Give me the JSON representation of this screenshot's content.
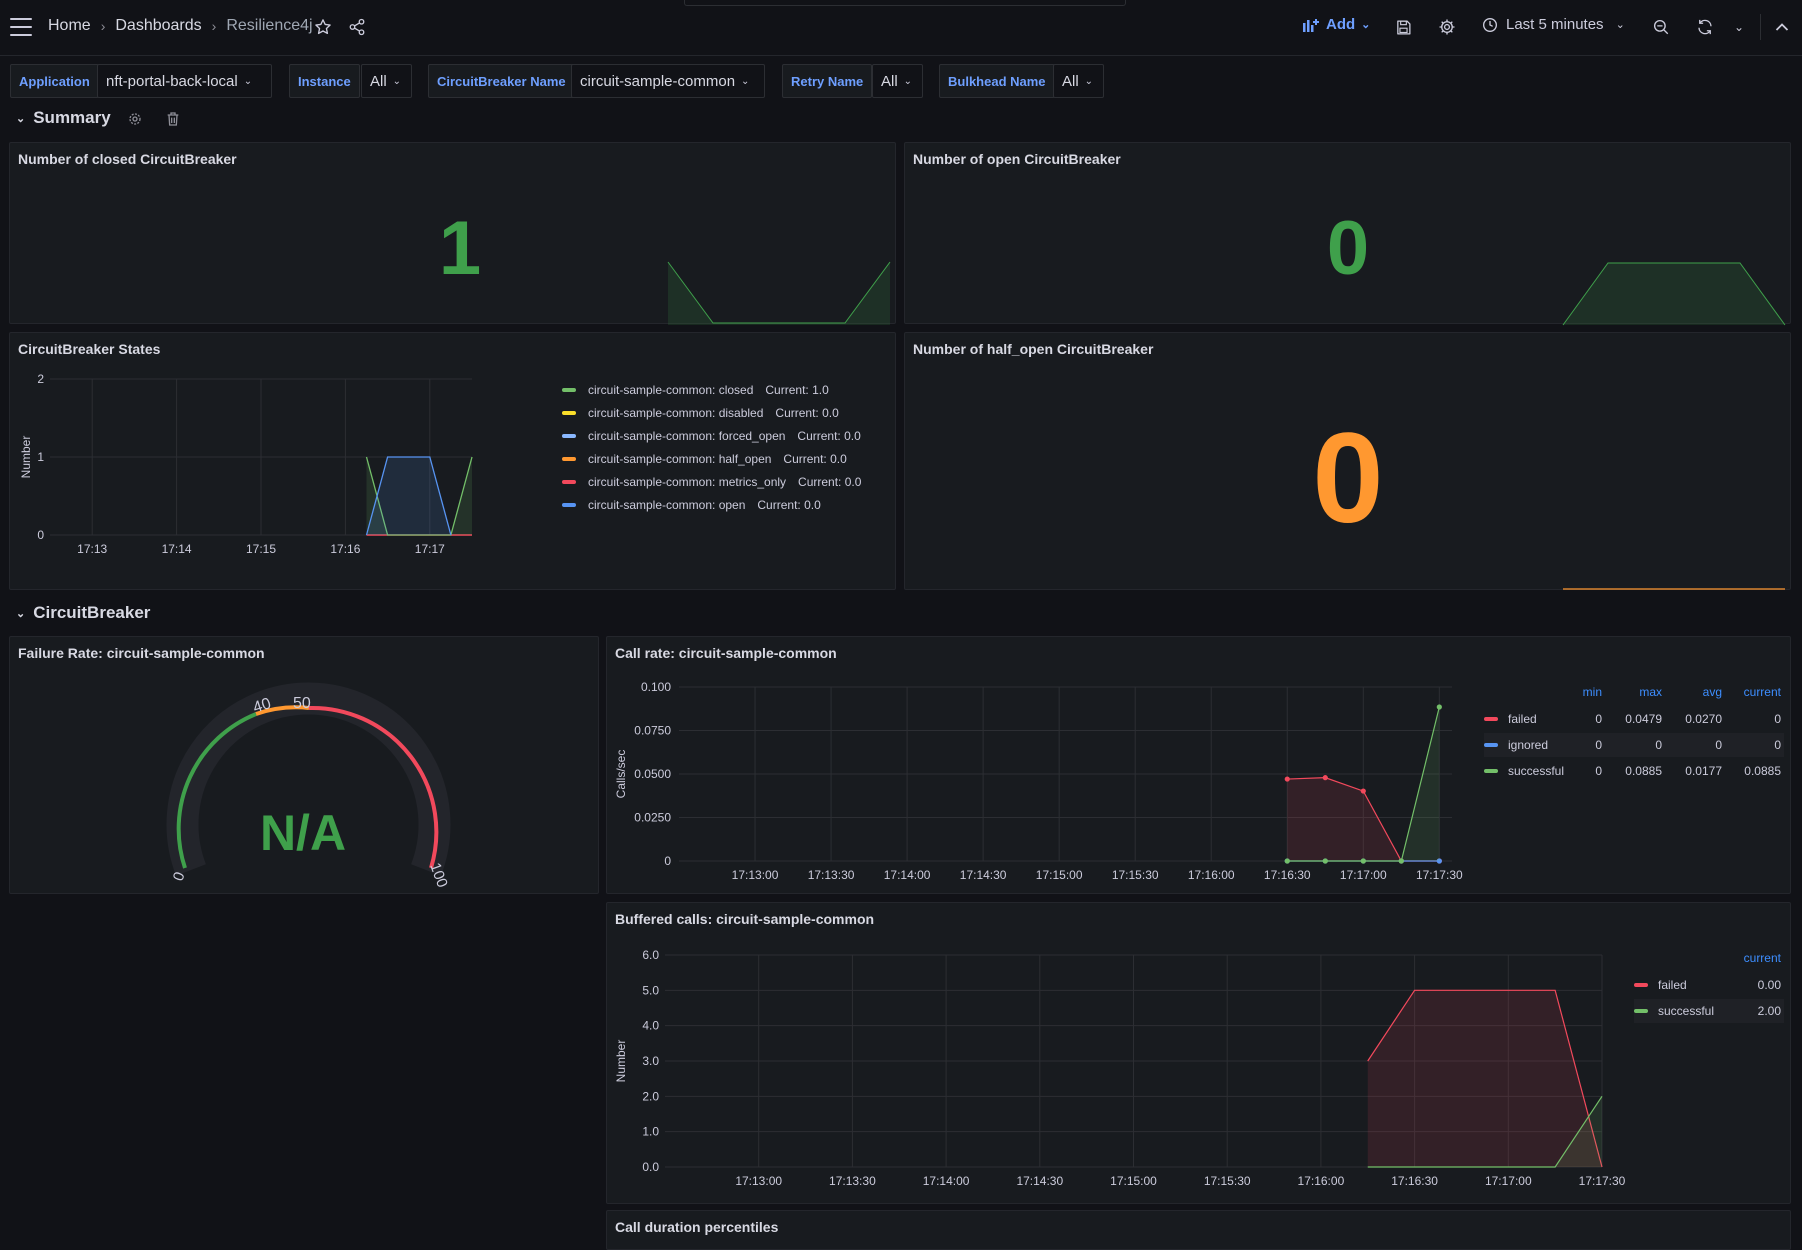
{
  "header": {
    "breadcrumbs": [
      "Home",
      "Dashboards",
      "Resilience4j"
    ],
    "add_label": "Add",
    "time_range": "Last 5 minutes",
    "icons": [
      "menu-icon",
      "star-icon",
      "share-icon",
      "save-icon",
      "gear-icon",
      "clock-icon",
      "zoom-out-icon",
      "refresh-icon",
      "chevron-up-icon"
    ]
  },
  "variables": [
    {
      "label": "Application",
      "value": "nft-portal-back-local"
    },
    {
      "label": "Instance",
      "value": "All"
    },
    {
      "label": "CircuitBreaker Name",
      "value": "circuit-sample-common"
    },
    {
      "label": "Retry Name",
      "value": "All"
    },
    {
      "label": "Bulkhead Name",
      "value": "All"
    }
  ],
  "rows": {
    "summary": "Summary",
    "circuitbreaker": "CircuitBreaker"
  },
  "panels": {
    "closed": {
      "title": "Number of closed CircuitBreaker",
      "value": "1",
      "color": "#3fa04b"
    },
    "open": {
      "title": "Number of open CircuitBreaker",
      "value": "0",
      "color": "#3fa04b"
    },
    "half_open": {
      "title": "Number of half_open CircuitBreaker",
      "value": "0",
      "color": "#ff9830"
    },
    "states": {
      "title": "CircuitBreaker States",
      "legend": [
        {
          "name": "circuit-sample-common: closed",
          "current": "Current: 1.0",
          "color": "#73bf69"
        },
        {
          "name": "circuit-sample-common: disabled",
          "current": "Current: 0.0",
          "color": "#fade2a"
        },
        {
          "name": "circuit-sample-common: forced_open",
          "current": "Current: 0.0",
          "color": "#8ab8ff"
        },
        {
          "name": "circuit-sample-common: half_open",
          "current": "Current: 0.0",
          "color": "#ff9830"
        },
        {
          "name": "circuit-sample-common: metrics_only",
          "current": "Current: 0.0",
          "color": "#f2495c"
        },
        {
          "name": "circuit-sample-common: open",
          "current": "Current: 0.0",
          "color": "#5794f2"
        }
      ]
    },
    "failure_rate": {
      "title": "Failure Rate: circuit-sample-common",
      "value": "N/A",
      "ticks": [
        "0",
        "40",
        "50",
        "100"
      ]
    },
    "call_rate": {
      "title": "Call rate: circuit-sample-common",
      "legend_headers": [
        "min",
        "max",
        "avg",
        "current"
      ],
      "legend_rows": [
        {
          "name": "failed",
          "min": "0",
          "max": "0.0479",
          "avg": "0.0270",
          "current": "0",
          "color": "#f2495c"
        },
        {
          "name": "ignored",
          "min": "0",
          "max": "0",
          "avg": "0",
          "current": "0",
          "color": "#5794f2"
        },
        {
          "name": "successful",
          "min": "0",
          "max": "0.0885",
          "avg": "0.0177",
          "current": "0.0885",
          "color": "#73bf69"
        }
      ]
    },
    "buffered": {
      "title": "Buffered calls: circuit-sample-common",
      "legend_header": "current",
      "legend_rows": [
        {
          "name": "failed",
          "current": "0.00",
          "color": "#f2495c"
        },
        {
          "name": "successful",
          "current": "2.00",
          "color": "#73bf69"
        }
      ]
    },
    "duration": {
      "title": "Call duration percentiles"
    }
  },
  "chart_data": [
    {
      "type": "line",
      "title": "CircuitBreaker States",
      "ylabel": "Number",
      "x": [
        "17:13",
        "17:14",
        "17:15",
        "17:16",
        "17:17"
      ],
      "ylim": [
        0,
        2
      ],
      "yticks": [
        "0",
        "1",
        "2"
      ],
      "series": [
        {
          "name": "circuit-sample-common: closed",
          "x": [
            "17:16:15",
            "17:16:30",
            "17:17:15",
            "17:17:30"
          ],
          "values": [
            1,
            0,
            0,
            1
          ]
        },
        {
          "name": "circuit-sample-common: open",
          "x": [
            "17:16:15",
            "17:16:30",
            "17:17:00",
            "17:17:15"
          ],
          "values": [
            0,
            1,
            1,
            0
          ]
        }
      ]
    },
    {
      "type": "line",
      "title": "Call rate: circuit-sample-common",
      "ylabel": "Calls/sec",
      "x": [
        "17:13:00",
        "17:13:30",
        "17:14:00",
        "17:14:30",
        "17:15:00",
        "17:15:30",
        "17:16:00",
        "17:16:30",
        "17:17:00",
        "17:17:30"
      ],
      "yticks": [
        "0",
        "0.0250",
        "0.0500",
        "0.0750",
        "0.100"
      ],
      "ylim": [
        0,
        0.1
      ],
      "series": [
        {
          "name": "failed",
          "x": [
            "17:16:30",
            "17:16:45",
            "17:17:00",
            "17:17:15",
            "17:17:30"
          ],
          "values": [
            0.0471,
            0.0479,
            0.0402,
            0,
            0
          ]
        },
        {
          "name": "ignored",
          "x": [
            "17:16:30",
            "17:16:45",
            "17:17:00",
            "17:17:15",
            "17:17:30"
          ],
          "values": [
            0,
            0,
            0,
            0,
            0
          ]
        },
        {
          "name": "successful",
          "x": [
            "17:16:30",
            "17:16:45",
            "17:17:00",
            "17:17:15",
            "17:17:30"
          ],
          "values": [
            0,
            0,
            0,
            0,
            0.0885
          ]
        }
      ]
    },
    {
      "type": "line",
      "title": "Buffered calls: circuit-sample-common",
      "ylabel": "Number",
      "x": [
        "17:13:00",
        "17:13:30",
        "17:14:00",
        "17:14:30",
        "17:15:00",
        "17:15:30",
        "17:16:00",
        "17:16:30",
        "17:17:00",
        "17:17:30"
      ],
      "yticks": [
        "0.0",
        "1.0",
        "2.0",
        "3.0",
        "4.0",
        "5.0",
        "6.0"
      ],
      "ylim": [
        0,
        6
      ],
      "series": [
        {
          "name": "failed",
          "x": [
            "17:16:15",
            "17:16:30",
            "17:17:15",
            "17:17:30"
          ],
          "values": [
            3,
            5,
            5,
            0
          ]
        },
        {
          "name": "successful",
          "x": [
            "17:16:15",
            "17:17:15",
            "17:17:30"
          ],
          "values": [
            0,
            0,
            2
          ]
        }
      ]
    }
  ]
}
